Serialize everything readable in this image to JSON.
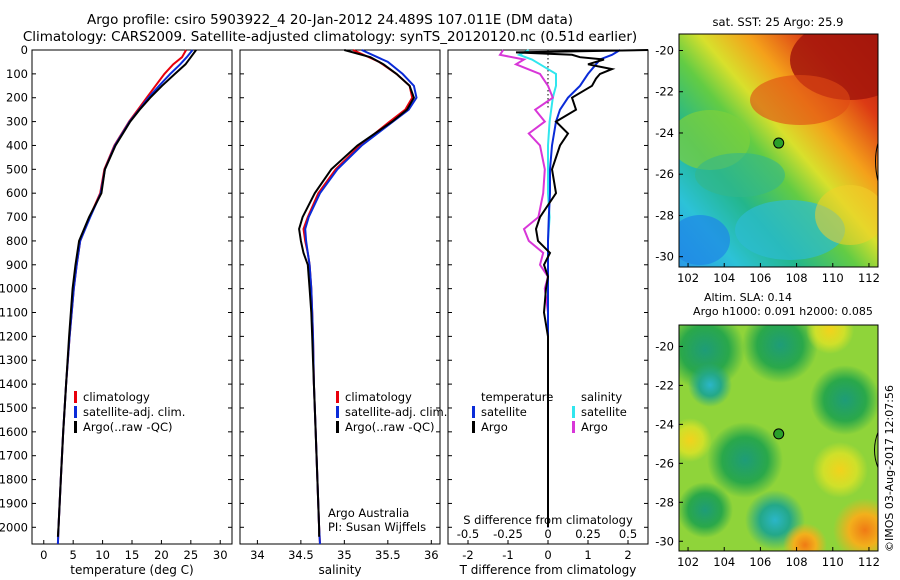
{
  "title": {
    "line1": "Argo profile: csiro 5903922_4 20-Jan-2012 24.489S 107.011E (DM data)",
    "line2": "Climatology: CARS2009. Satellite-adjusted climatology: synTS_20120120.nc (0.51d earlier)"
  },
  "colors": {
    "climatology": "#e8000b",
    "satellite": "#0a2bd8",
    "argo": "#000000",
    "salinity_sat": "#30e6ee",
    "salinity_argo": "#d836d8",
    "marker": "#2aa02a"
  },
  "depth_axis": {
    "ticks": [
      "0",
      "100",
      "200",
      "300",
      "400",
      "500",
      "600",
      "700",
      "800",
      "900",
      "1000",
      "1100",
      "1200",
      "1300",
      "1400",
      "1500",
      "1600",
      "1700",
      "1800",
      "1900",
      "2000"
    ]
  },
  "temperature_panel": {
    "xlabel": "temperature (deg C)",
    "ticks": [
      "0",
      "5",
      "10",
      "15",
      "20",
      "25",
      "30"
    ],
    "legend": [
      "climatology",
      "satellite-adj. clim.",
      "Argo(..raw -QC)"
    ]
  },
  "salinity_panel": {
    "xlabel": "salinity",
    "ticks": [
      "34",
      "34.5",
      "35",
      "35.5",
      "36"
    ],
    "legend": [
      "climatology",
      "satellite-adj. clim.",
      "Argo(..raw -QC)"
    ],
    "note1": "Argo Australia",
    "note2": "PI: Susan Wijffels"
  },
  "difference_panel": {
    "xlabel": "T difference from climatology",
    "top_label": "S difference from climatology",
    "t_ticks": [
      "-2",
      "-1",
      "0",
      "1",
      "2"
    ],
    "s_ticks": [
      "-0.5",
      "-0.25",
      "0",
      "0.25",
      "0.5"
    ],
    "legend_temp_title": "temperature",
    "legend_sal_title": "salinity",
    "legend_temp": [
      "satellite",
      "Argo"
    ],
    "legend_sal": [
      "satellite",
      "Argo"
    ]
  },
  "sst_map": {
    "title": "sat. SST: 25 Argo: 25.9",
    "lat_ticks": [
      "-20",
      "-22",
      "-24",
      "-26",
      "-28",
      "-30"
    ],
    "lon_ticks": [
      "102",
      "104",
      "106",
      "108",
      "110",
      "112"
    ]
  },
  "sla_map": {
    "title1": "Altim. SLA: 0.14",
    "title2": "Argo h1000: 0.091 h2000: 0.085",
    "lat_ticks": [
      "-20",
      "-22",
      "-24",
      "-26",
      "-28",
      "-30"
    ],
    "lon_ticks": [
      "102",
      "104",
      "106",
      "108",
      "110",
      "112"
    ]
  },
  "footer": "©IMOS 03-Aug-2017 12:07:56",
  "chart_data": [
    {
      "type": "line",
      "name": "temperature profile",
      "xlabel": "temperature (deg C)",
      "ylabel": "",
      "xlim": [
        -2,
        32
      ],
      "ylim": [
        2070,
        0
      ],
      "series": [
        {
          "name": "climatology",
          "depth": [
            0,
            30,
            60,
            100,
            150,
            200,
            250,
            300,
            400,
            500,
            600,
            700,
            800,
            900,
            1000,
            1200,
            1400,
            1600,
            1800,
            2000,
            2070
          ],
          "values": [
            24.2,
            23.5,
            22.0,
            20.5,
            19.0,
            17.5,
            16.0,
            14.5,
            12.0,
            10.3,
            9.6,
            7.8,
            6.2,
            5.6,
            5.1,
            4.4,
            3.8,
            3.3,
            2.9,
            2.5,
            2.4
          ]
        },
        {
          "name": "satellite-adj. clim.",
          "depth": [
            0,
            30,
            60,
            100,
            150,
            200,
            250,
            300,
            400,
            500,
            600,
            700,
            800,
            900,
            1000,
            1200,
            1400,
            1600,
            1800,
            2000,
            2070
          ],
          "values": [
            25.3,
            24.3,
            23.2,
            21.5,
            19.6,
            17.8,
            16.2,
            14.6,
            12.1,
            10.4,
            9.7,
            7.9,
            6.2,
            5.6,
            5.1,
            4.4,
            3.8,
            3.3,
            2.9,
            2.5,
            2.4
          ]
        },
        {
          "name": "Argo(..raw -QC)",
          "depth": [
            0,
            30,
            60,
            100,
            150,
            200,
            250,
            300,
            400,
            500,
            600,
            700,
            800,
            900,
            1000,
            1200,
            1400,
            1600,
            1800,
            2000,
            2040
          ],
          "values": [
            25.9,
            25.0,
            24.1,
            22.3,
            20.1,
            18.1,
            16.3,
            14.7,
            12.2,
            10.4,
            9.8,
            7.7,
            6.0,
            5.4,
            4.9,
            4.3,
            3.8,
            3.3,
            2.9,
            2.5,
            2.4
          ]
        }
      ]
    },
    {
      "type": "line",
      "name": "salinity profile",
      "xlabel": "salinity",
      "ylabel": "",
      "xlim": [
        33.8,
        36.1
      ],
      "ylim": [
        2070,
        0
      ],
      "series": [
        {
          "name": "climatology",
          "depth": [
            0,
            50,
            100,
            150,
            200,
            250,
            300,
            400,
            500,
            600,
            700,
            750,
            800,
            850,
            900,
            1000,
            1100,
            1200,
            1400,
            1600,
            1800,
            2000,
            2070
          ],
          "values": [
            35.1,
            35.4,
            35.6,
            35.75,
            35.78,
            35.7,
            35.52,
            35.18,
            34.9,
            34.7,
            34.58,
            34.53,
            34.55,
            34.58,
            34.6,
            34.62,
            34.63,
            34.64,
            34.65,
            34.67,
            34.69,
            34.71,
            34.72
          ]
        },
        {
          "name": "satellite-adj. clim.",
          "depth": [
            0,
            50,
            100,
            150,
            200,
            250,
            300,
            400,
            500,
            600,
            700,
            750,
            800,
            850,
            900,
            1000,
            1100,
            1200,
            1400,
            1600,
            1800,
            2000,
            2070
          ],
          "values": [
            35.2,
            35.5,
            35.67,
            35.8,
            35.83,
            35.74,
            35.56,
            35.2,
            34.92,
            34.72,
            34.59,
            34.55,
            34.56,
            34.58,
            34.6,
            34.62,
            34.63,
            34.64,
            34.65,
            34.67,
            34.69,
            34.71,
            34.72
          ]
        },
        {
          "name": "Argo(..raw -QC)",
          "depth": [
            0,
            30,
            60,
            100,
            150,
            200,
            250,
            300,
            400,
            500,
            600,
            700,
            750,
            800,
            850,
            900,
            1000,
            1100,
            1200,
            1300,
            1400,
            1500,
            1800,
            2000,
            2040
          ],
          "values": [
            35.0,
            35.3,
            35.45,
            35.6,
            35.75,
            35.8,
            35.72,
            35.55,
            35.15,
            34.85,
            34.66,
            34.52,
            34.48,
            34.5,
            34.53,
            34.58,
            34.6,
            34.62,
            34.63,
            34.64,
            34.65,
            34.66,
            34.69,
            34.71,
            34.71
          ]
        }
      ]
    },
    {
      "type": "line",
      "name": "difference from climatology",
      "xlabel": "T difference from climatology",
      "top_label": "S difference from climatology",
      "xlim": [
        -2.5,
        2.5
      ],
      "ylim": [
        2070,
        0
      ],
      "series": [
        {
          "name": "temperature satellite",
          "depth": [
            0,
            20,
            40,
            60,
            100,
            150,
            200,
            250,
            300,
            400,
            500,
            600,
            700,
            800,
            900,
            1000,
            1200,
            1400,
            1600,
            1800,
            2000
          ],
          "values": [
            1.8,
            1.6,
            1.3,
            1.2,
            1.0,
            0.8,
            0.5,
            0.3,
            0.2,
            0.1,
            0.05,
            0.05,
            0.02,
            0.0,
            0.0,
            0.0,
            0.0,
            0.0,
            0.0,
            0.0,
            0.0
          ]
        },
        {
          "name": "temperature Argo",
          "depth": [
            0,
            10,
            20,
            30,
            40,
            60,
            80,
            100,
            120,
            150,
            200,
            250,
            300,
            350,
            400,
            500,
            600,
            700,
            750,
            800,
            850,
            900,
            950,
            1000,
            1100,
            1200,
            1400,
            1600,
            1800,
            2000
          ],
          "values": [
            2.5,
            -0.8,
            0.6,
            0.8,
            1.4,
            1.0,
            1.6,
            1.3,
            1.2,
            1.1,
            0.6,
            0.7,
            0.2,
            0.5,
            0.3,
            0.1,
            0.2,
            -0.2,
            -0.3,
            -0.25,
            0.05,
            -0.1,
            0.0,
            -0.05,
            -0.1,
            0.0,
            0.0,
            0.0,
            0.0,
            0.0
          ]
        },
        {
          "name": "salinity satellite",
          "depth": [
            0,
            20,
            40,
            60,
            100,
            150,
            200,
            250,
            300,
            400,
            500,
            600,
            700,
            800,
            900,
            1000,
            1200,
            1400,
            1600,
            1800,
            2000
          ],
          "values": [
            -0.12,
            -0.18,
            -0.1,
            -0.05,
            0.05,
            0.05,
            0.03,
            0.02,
            0.01,
            0.0,
            0.0,
            0.0,
            0.01,
            0.0,
            0.0,
            0.0,
            0.0,
            0.0,
            0.0,
            0.0,
            0.0
          ]
        },
        {
          "name": "salinity Argo",
          "depth": [
            0,
            20,
            40,
            60,
            100,
            150,
            200,
            250,
            300,
            350,
            400,
            500,
            600,
            700,
            750,
            800,
            850,
            900,
            950,
            1000,
            1100,
            1200,
            1400,
            1600,
            1800,
            2000
          ],
          "values": [
            -0.28,
            -0.3,
            -0.15,
            -0.2,
            -0.05,
            0.0,
            0.03,
            -0.08,
            -0.02,
            -0.12,
            -0.05,
            -0.02,
            -0.03,
            -0.06,
            -0.15,
            -0.12,
            -0.03,
            -0.05,
            0.0,
            -0.02,
            0.0,
            0.0,
            0.0,
            0.0,
            0.0,
            0.0
          ]
        }
      ]
    },
    {
      "type": "heatmap",
      "name": "sat. SST map",
      "title": "sat. SST: 25 Argo: 25.9",
      "lon_range": [
        101.5,
        112.5
      ],
      "lat_range": [
        -30.5,
        -19.2
      ],
      "argo_position": {
        "lon": 107.011,
        "lat": -24.489
      },
      "trend": "warm (red) to north-east, cool (cyan/blue) to south-west"
    },
    {
      "type": "heatmap",
      "name": "SLA map",
      "title": "Altim. SLA: 0.14",
      "lon_range": [
        101.5,
        112.5
      ],
      "lat_range": [
        -30.5,
        -18.9
      ],
      "argo_position": {
        "lon": 107.011,
        "lat": -24.489
      }
    }
  ]
}
